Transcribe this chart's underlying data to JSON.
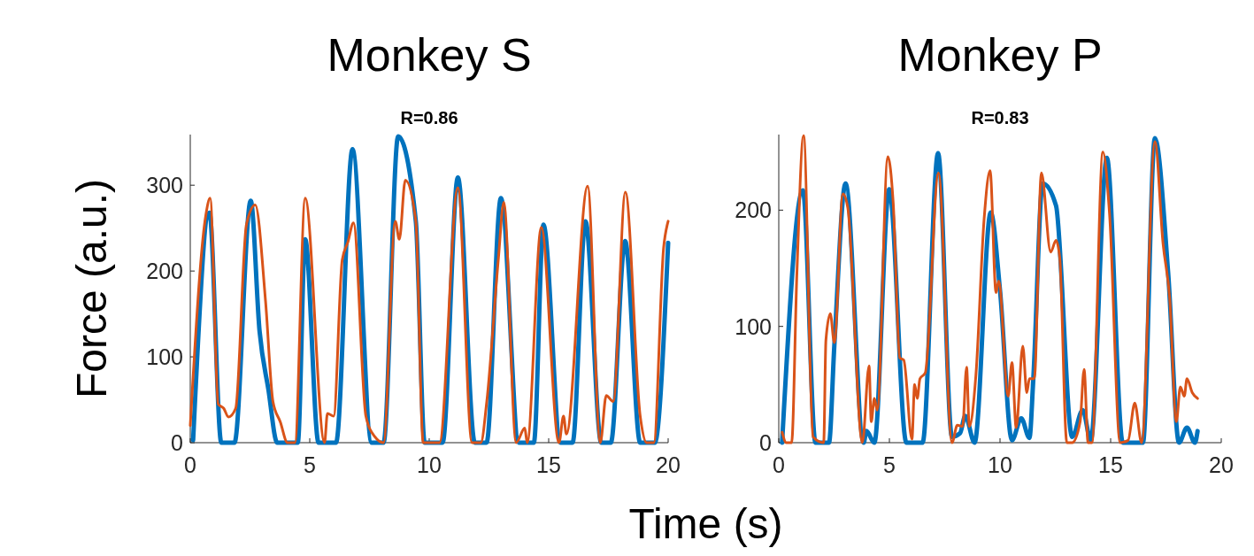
{
  "chart_data": [
    {
      "type": "line",
      "title": "Monkey S",
      "subtitle": "R=0.86",
      "ylabel": "Force (a.u.)",
      "xlabel": "Time (s)",
      "xlim": [
        0,
        20
      ],
      "ylim": [
        0,
        359
      ],
      "xticks": [
        0,
        5,
        10,
        15,
        20
      ],
      "yticks": [
        0,
        100,
        200,
        300
      ],
      "series": [
        {
          "color": "#0072bd",
          "x": [
            0.12,
            0.8,
            1.3,
            1.85,
            2.53,
            2.9,
            3.27,
            3.64,
            4.5,
            4.81,
            5.37,
            6.1,
            6.79,
            7.59,
            8.09,
            8.7,
            9.44,
            9.81,
            10.56,
            11.2,
            11.91,
            12.4,
            13.0,
            13.76,
            14.38,
            14.78,
            15.5,
            16.0,
            16.54,
            17.2,
            17.6,
            18.2,
            18.83,
            19.44,
            20.0
          ],
          "values": [
            3,
            268,
            0,
            0,
            282,
            130,
            62,
            0,
            0,
            237,
            0,
            0,
            342,
            0,
            0,
            357,
            258,
            0,
            0,
            309,
            0,
            0,
            285,
            0,
            0,
            254,
            0,
            0,
            258,
            0,
            0,
            235,
            0,
            0,
            233
          ]
        },
        {
          "color": "#d95319",
          "x": [
            0,
            0.65,
            0.83,
            1.17,
            1.4,
            1.6,
            1.9,
            2.35,
            2.72,
            3.15,
            3.46,
            3.77,
            4.07,
            4.38,
            4.81,
            5.62,
            5.74,
            6.0,
            6.36,
            6.6,
            6.83,
            7.35,
            7.72,
            8.09,
            8.58,
            8.75,
            9.0,
            9.44,
            9.75,
            10.43,
            11.2,
            11.79,
            12.16,
            12.41,
            12.9,
            13.12,
            13.64,
            14.0,
            14.1,
            14.69,
            15.43,
            15.62,
            15.74,
            16.63,
            17.16,
            17.41,
            17.7,
            18.21,
            18.83,
            19.1,
            19.4,
            19.81,
            20.0
          ],
          "values": [
            20,
            265,
            285,
            45,
            40,
            30,
            40,
            254,
            277,
            165,
            48,
            24,
            0,
            0,
            285,
            0,
            34,
            31,
            213,
            234,
            256,
            31,
            7,
            0,
            258,
            237,
            306,
            258,
            0,
            0,
            297,
            0,
            0,
            48,
            216,
            280,
            0,
            17,
            0,
            251,
            0,
            31,
            10,
            299,
            0,
            55,
            48,
            292,
            31,
            0,
            0,
            227,
            258
          ]
        }
      ]
    },
    {
      "type": "line",
      "title": "Monkey P",
      "subtitle": "R=0.83",
      "xlim": [
        0,
        20
      ],
      "ylim": [
        0,
        265
      ],
      "xticks": [
        0,
        5,
        10,
        15,
        20
      ],
      "yticks": [
        0,
        100,
        200
      ],
      "series": [
        {
          "color": "#0072bd",
          "x": [
            0.15,
            1.09,
            1.66,
            2.27,
            2.51,
            3.02,
            3.84,
            3.96,
            4.32,
            4.99,
            5.77,
            6.5,
            7.2,
            7.83,
            8.19,
            8.43,
            8.85,
            9.58,
            10.0,
            10.54,
            10.96,
            11.33,
            11.5,
            11.93,
            12.53,
            13.26,
            13.74,
            14.1,
            14.83,
            15.55,
            16.46,
            17.0,
            17.6,
            18.09,
            18.45,
            18.81,
            18.93
          ],
          "values": [
            0,
            217,
            0,
            0,
            83,
            223,
            0,
            10,
            0,
            218,
            0,
            0,
            249,
            5,
            8,
            23,
            0,
            198,
            131,
            2,
            21,
            4,
            53,
            223,
            204,
            5,
            28,
            2,
            245,
            0,
            0,
            262,
            146,
            0,
            13,
            0,
            10
          ]
        },
        {
          "color": "#d95319",
          "x": [
            0.15,
            0.34,
            0.58,
            0.82,
            1.12,
            1.55,
            2.03,
            2.13,
            2.33,
            2.51,
            2.9,
            3.12,
            3.78,
            4.08,
            4.18,
            4.32,
            4.45,
            4.93,
            5.17,
            5.47,
            5.65,
            6.02,
            6.14,
            6.26,
            6.38,
            6.62,
            7.22,
            7.83,
            8.07,
            8.31,
            8.49,
            8.61,
            8.91,
            9.28,
            9.55,
            9.82,
            9.94,
            10.37,
            10.54,
            10.73,
            11.03,
            11.21,
            11.33,
            11.55,
            11.87,
            12.29,
            12.53,
            12.7,
            13.02,
            13.26,
            13.62,
            13.8,
            13.98,
            14.15,
            14.65,
            14.95,
            15.43,
            15.79,
            16.09,
            16.4,
            17.0,
            17.37,
            17.67,
            17.97,
            18.15,
            18.33,
            18.45,
            18.69,
            18.93
          ],
          "values": [
            9,
            0,
            0,
            146,
            264,
            5,
            0,
            88,
            111,
            86,
            214,
            202,
            0,
            66,
            18,
            38,
            28,
            246,
            207,
            73,
            71,
            3,
            50,
            38,
            55,
            60,
            232,
            0,
            15,
            14,
            65,
            14,
            58,
            192,
            234,
            129,
            139,
            40,
            69,
            13,
            83,
            43,
            55,
            55,
            232,
            164,
            174,
            159,
            0,
            0,
            18,
            63,
            0,
            0,
            250,
            197,
            0,
            2,
            34,
            0,
            259,
            171,
            124,
            18,
            48,
            40,
            55,
            43,
            38
          ]
        }
      ]
    }
  ]
}
